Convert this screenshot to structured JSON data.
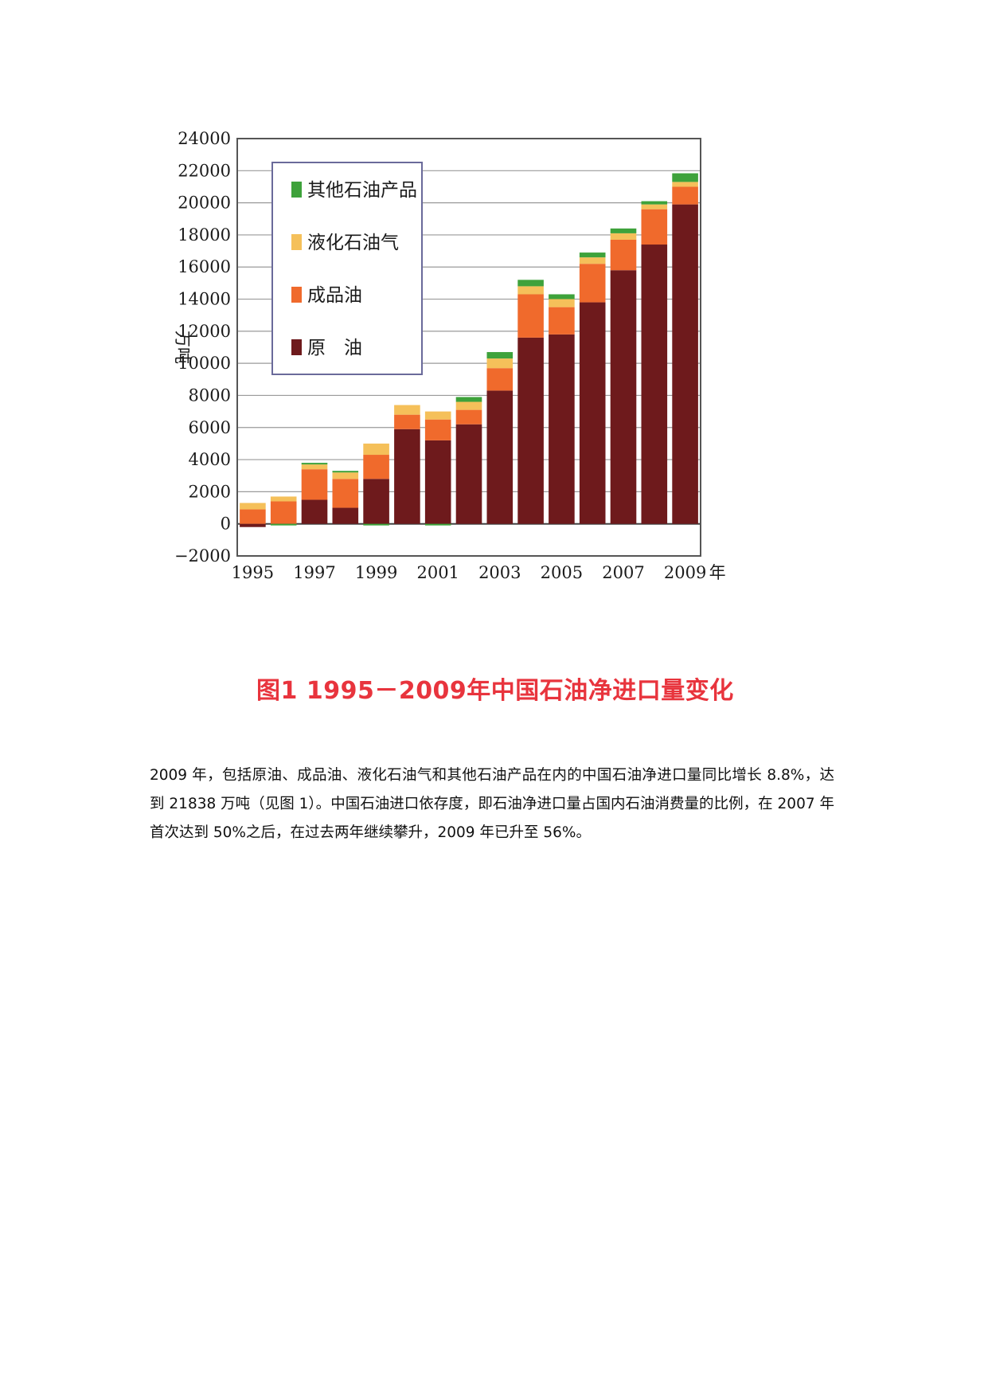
{
  "chart_data": {
    "type": "bar",
    "stacked": true,
    "title": "图1 1995－2009年中国石油净进口量变化",
    "ylabel": "万吨",
    "xlabel_suffix": "年",
    "ylim": [
      -2000,
      24000
    ],
    "yticks": [
      -2000,
      0,
      2000,
      4000,
      6000,
      8000,
      10000,
      12000,
      14000,
      16000,
      18000,
      20000,
      22000,
      24000
    ],
    "xtick_labels": [
      "1995",
      "1997",
      "1999",
      "2001",
      "2003",
      "2005",
      "2007",
      "2009"
    ],
    "categories": [
      "1995",
      "1996",
      "1997",
      "1998",
      "1999",
      "2000",
      "2001",
      "2002",
      "2003",
      "2004",
      "2005",
      "2006",
      "2007",
      "2008",
      "2009"
    ],
    "legend_position": "upper-left",
    "grid": true,
    "series": [
      {
        "name": "原　油",
        "color": "#6e1a1c",
        "values": [
          -200,
          0,
          1500,
          1000,
          2800,
          5900,
          5200,
          6200,
          8300,
          11600,
          11800,
          13800,
          15800,
          17400,
          19900
        ]
      },
      {
        "name": "成品油",
        "color": "#f06a2c",
        "values": [
          900,
          1400,
          1900,
          1800,
          1500,
          900,
          1300,
          900,
          1400,
          2700,
          1700,
          2400,
          1900,
          2200,
          1100
        ]
      },
      {
        "name": "液化石油气",
        "color": "#f5c05a",
        "values": [
          400,
          300,
          300,
          400,
          700,
          600,
          500,
          500,
          600,
          500,
          500,
          400,
          400,
          300,
          300
        ]
      },
      {
        "name": "其他石油产品",
        "color": "#3ea23b",
        "values": [
          0,
          -100,
          100,
          100,
          -100,
          0,
          -100,
          300,
          400,
          400,
          300,
          300,
          300,
          200,
          538
        ]
      }
    ]
  },
  "body_text": "2009 年，包括原油、成品油、液化石油气和其他石油产品在内的中国石油净进口量同比增长 8.8%，达到 21838 万吨（见图 1）。中国石油进口依存度，即石油净进口量占国内石油消费量的比例，在 2007 年首次达到 50%之后，在过去两年继续攀升，2009 年已升至 56%。"
}
